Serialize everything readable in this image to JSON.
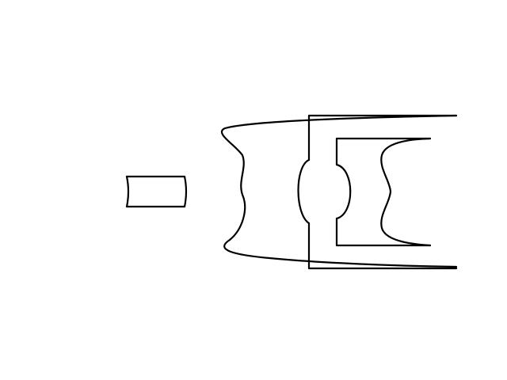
{
  "diagram": {
    "background": "#ffffff",
    "stroke_color": "#000000",
    "elements": [
      {
        "id": "small-lens-element",
        "shape": "short concave-sided block"
      },
      {
        "id": "front-flared-lens-element",
        "shape": "wide wavy-edged flared element"
      },
      {
        "id": "lens-housing-frame",
        "shape": "rectangular barrel frame"
      },
      {
        "id": "biconvex-lens-element",
        "shape": "biconvex element with flat shoulders"
      },
      {
        "id": "rear-flared-lens-element",
        "shape": "concave-sided bracket element"
      }
    ]
  }
}
